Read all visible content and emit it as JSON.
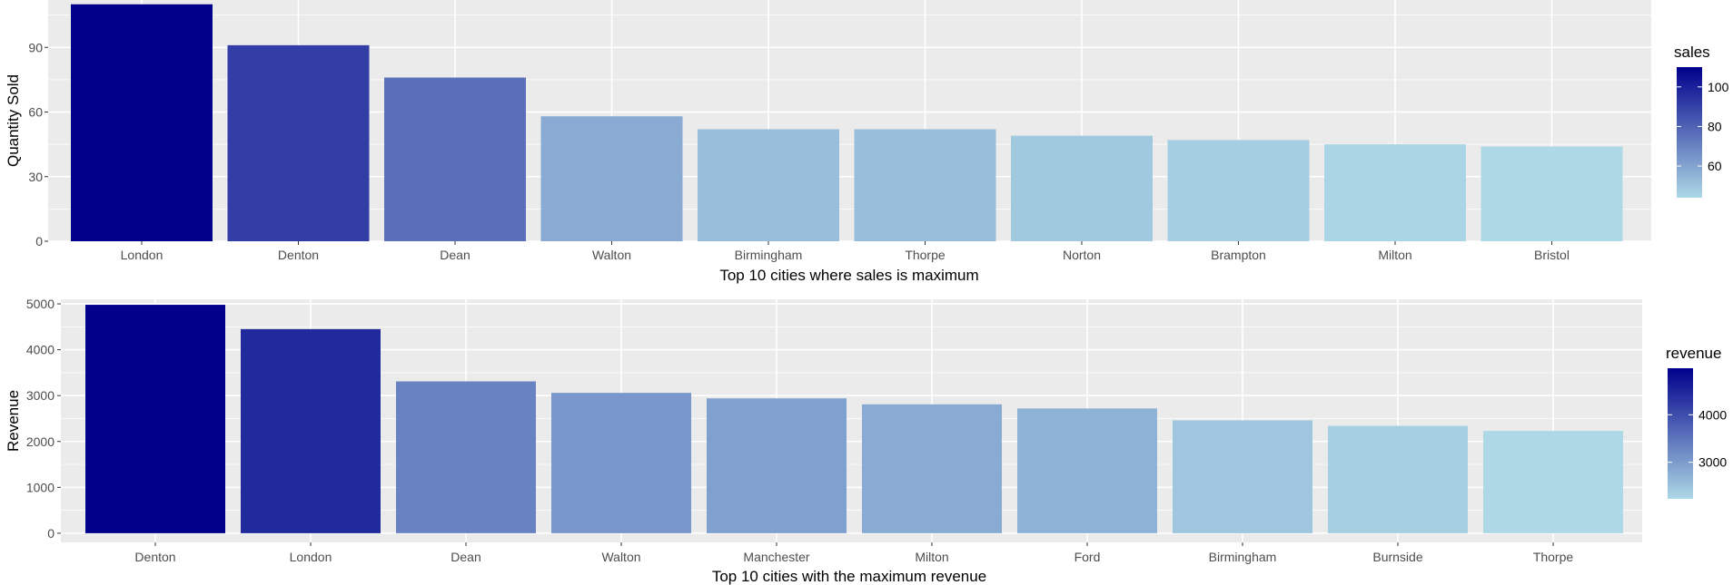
{
  "chart_data": [
    {
      "type": "bar",
      "categories": [
        "London",
        "Denton",
        "Dean",
        "Walton",
        "Birmingham",
        "Thorpe",
        "Norton",
        "Brampton",
        "Milton",
        "Bristol"
      ],
      "values": [
        110,
        91,
        76,
        58,
        52,
        52,
        49,
        47,
        45,
        44
      ],
      "xlabel": "Top 10 cities where sales is maximum",
      "ylabel": "Quantity Sold",
      "ylim": [
        0,
        112
      ],
      "yticks": [
        0,
        30,
        60,
        90
      ],
      "grid": true,
      "legend": {
        "title": "sales",
        "placement": "right",
        "ticks": [
          60,
          80,
          100
        ],
        "range": [
          44,
          110
        ],
        "low_color": "#ADD8E6",
        "high_color": "#00008B"
      }
    },
    {
      "type": "bar",
      "categories": [
        "Denton",
        "London",
        "Dean",
        "Walton",
        "Manchester",
        "Milton",
        "Ford",
        "Birmingham",
        "Burnside",
        "Thorpe"
      ],
      "values": [
        4980,
        4450,
        3310,
        3060,
        2940,
        2810,
        2720,
        2460,
        2340,
        2230
      ],
      "xlabel": "Top 10 cities with the maximum revenue",
      "ylabel": "Revenue",
      "ylim": [
        -200,
        5100
      ],
      "yticks": [
        0,
        1000,
        2000,
        3000,
        4000,
        5000
      ],
      "grid": true,
      "legend": {
        "title": "revenue",
        "placement": "right",
        "ticks": [
          3000,
          4000
        ],
        "range": [
          2230,
          4980
        ],
        "low_color": "#ADD8E6",
        "high_color": "#00008B"
      }
    }
  ]
}
